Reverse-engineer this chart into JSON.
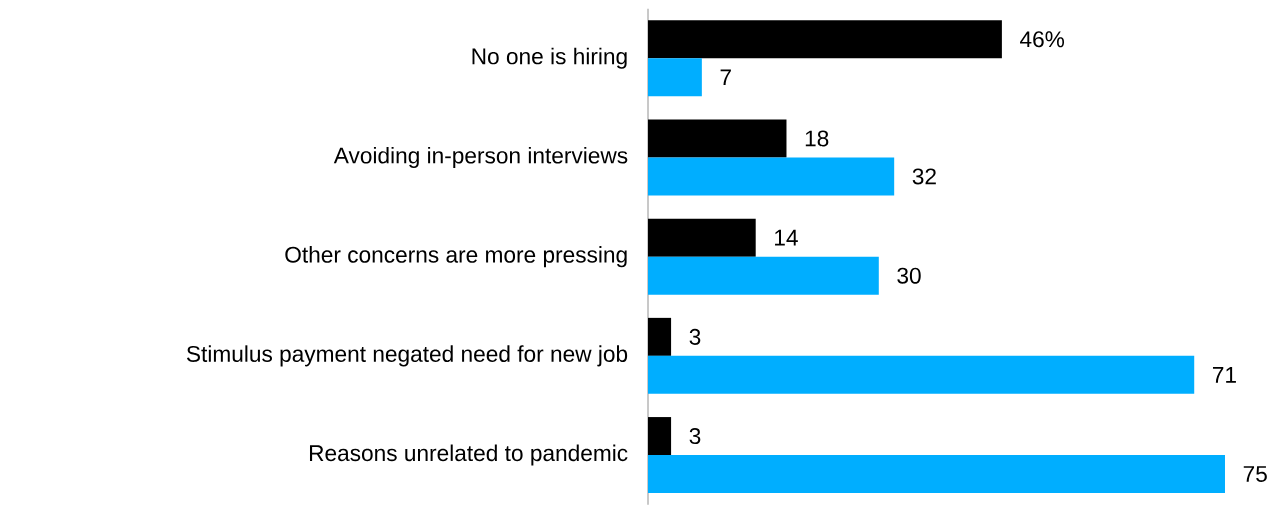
{
  "chart_data": {
    "type": "bar",
    "orientation": "horizontal",
    "categories": [
      "No one is hiring",
      "Avoiding in-person interviews",
      "Other concerns are more pressing",
      "Stimulus payment negated need for new job",
      "Reasons unrelated to pandemic"
    ],
    "xlim": [
      0,
      75
    ],
    "series": [
      {
        "color": "#000000",
        "values": [
          46,
          18,
          14,
          3,
          3
        ],
        "value_labels": [
          "46%",
          "18",
          "14",
          "3",
          "3"
        ]
      },
      {
        "color": "#00aeff",
        "values": [
          7,
          32,
          30,
          71,
          75
        ],
        "value_labels": [
          "7",
          "32",
          "30",
          "71",
          "75"
        ]
      }
    ]
  }
}
